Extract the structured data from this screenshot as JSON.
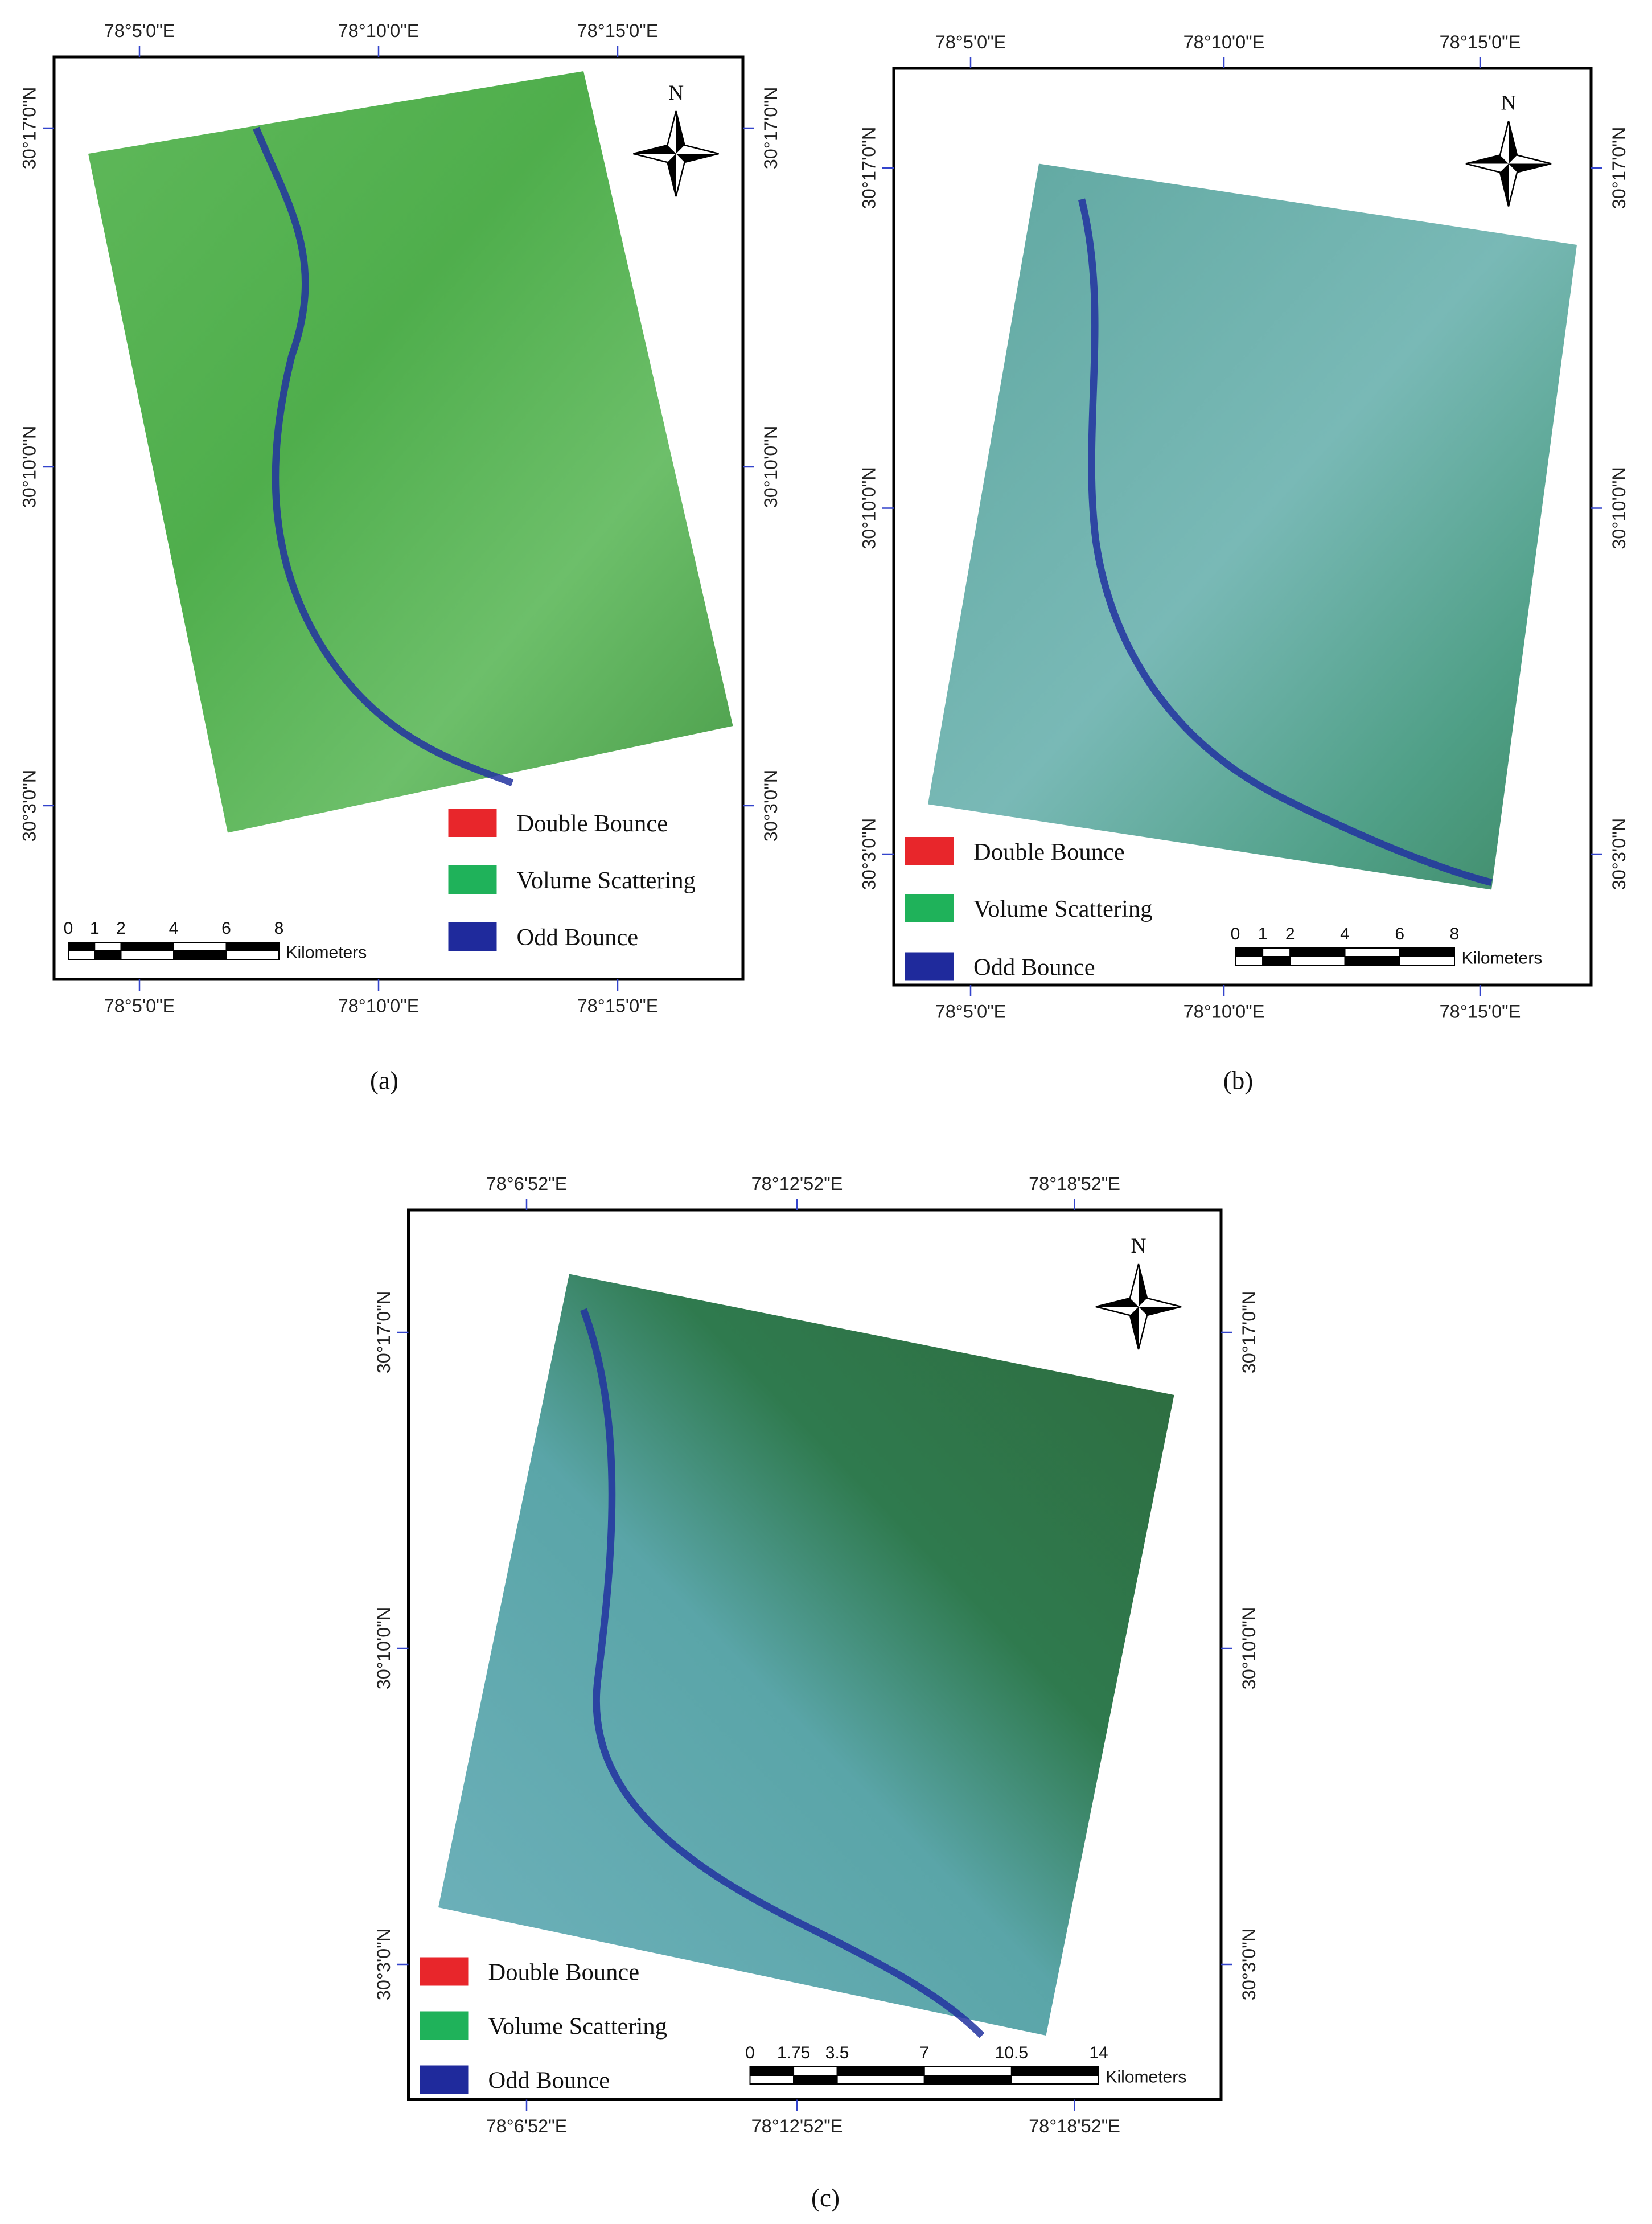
{
  "panels": [
    {
      "label": "(a)",
      "top_ticks": [
        "78°5'0\"E",
        "78°10'0\"E",
        "78°15'0\"E"
      ],
      "bottom_ticks": [
        "78°5'0\"E",
        "78°10'0\"E",
        "78°15'0\"E"
      ],
      "left_ticks": [
        "30°17'0\"N",
        "30°10'0\"N",
        "30°3'0\"N"
      ],
      "right_ticks": [
        "30°17'0\"N",
        "30°10'0\"N",
        "30°3'0\"N"
      ],
      "north": "N",
      "legend": [
        "Double Bounce",
        "Volume Scattering",
        "Odd Bounce"
      ],
      "scale_ticks": [
        "0",
        "1",
        "2",
        "4",
        "6",
        "8"
      ],
      "scale_unit": "Kilometers"
    },
    {
      "label": "(b)",
      "top_ticks": [
        "78°5'0\"E",
        "78°10'0\"E",
        "78°15'0\"E"
      ],
      "bottom_ticks": [
        "78°5'0\"E",
        "78°10'0\"E",
        "78°15'0\"E"
      ],
      "left_ticks": [
        "30°17'0\"N",
        "30°10'0\"N",
        "30°3'0\"N"
      ],
      "right_ticks": [
        "30°17'0\"N",
        "30°10'0\"N",
        "30°3'0\"N"
      ],
      "north": "N",
      "legend": [
        "Double Bounce",
        "Volume Scattering",
        "Odd Bounce"
      ],
      "scale_ticks": [
        "0",
        "1",
        "2",
        "4",
        "6",
        "8"
      ],
      "scale_unit": "Kilometers"
    },
    {
      "label": "(c)",
      "top_ticks": [
        "78°6'52\"E",
        "78°12'52\"E",
        "78°18'52\"E"
      ],
      "bottom_ticks": [
        "78°6'52\"E",
        "78°12'52\"E",
        "78°18'52\"E"
      ],
      "left_ticks": [
        "30°17'0\"N",
        "30°10'0\"N",
        "30°3'0\"N"
      ],
      "right_ticks": [
        "30°17'0\"N",
        "30°10'0\"N",
        "30°3'0\"N"
      ],
      "north": "N",
      "legend": [
        "Double Bounce",
        "Volume Scattering",
        "Odd Bounce"
      ],
      "scale_ticks": [
        "0",
        "1.75",
        "3.5",
        "7",
        "10.5",
        "14"
      ],
      "scale_unit": "Kilometers"
    }
  ]
}
